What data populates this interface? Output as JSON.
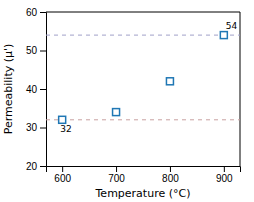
{
  "chart_data": {
    "type": "scatter",
    "x": [
      600,
      700,
      800,
      900
    ],
    "values": [
      32,
      34,
      42,
      54
    ],
    "marker": "square",
    "xlabel": "Temperature (°C)",
    "ylabel": "Permeability (μ')",
    "xlim": [
      570,
      930
    ],
    "ylim": [
      20,
      60
    ],
    "xticks": [
      600,
      700,
      800,
      900
    ],
    "yticks": [
      20,
      30,
      40,
      50,
      60
    ],
    "hlines": [
      {
        "y": 32,
        "color": "#c8a0a0",
        "line_style": "dashed"
      },
      {
        "y": 54,
        "color": "#a0a0c8",
        "line_style": "dashed"
      }
    ],
    "annotations": [
      {
        "text": "32",
        "x": 600,
        "y": 32
      },
      {
        "text": "54",
        "x": 900,
        "y": 54
      }
    ]
  }
}
